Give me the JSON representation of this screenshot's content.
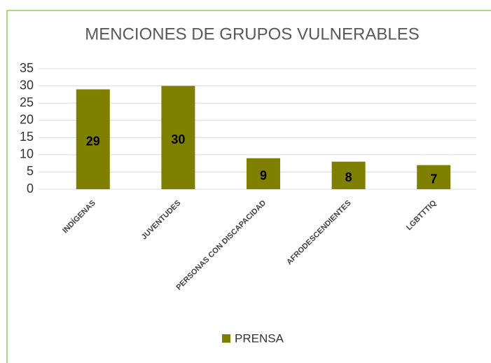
{
  "chart_data": {
    "type": "bar",
    "title": "MENCIONES DE GRUPOS VULNERABLES",
    "categories": [
      "INDÍGENAS",
      "JUVENTUDES",
      "PERSONAS CON DISCAPACIDAD",
      "AFRODESCENDIENTES",
      "LGBTTTIQ"
    ],
    "series": [
      {
        "name": "PRENSA",
        "color": "#7f7f00",
        "values": [
          29,
          30,
          9,
          8,
          7
        ]
      }
    ],
    "ylim": [
      0,
      35
    ],
    "yticks": [
      0,
      5,
      10,
      15,
      20,
      25,
      30,
      35
    ],
    "grid": true,
    "legend": "bottom"
  }
}
